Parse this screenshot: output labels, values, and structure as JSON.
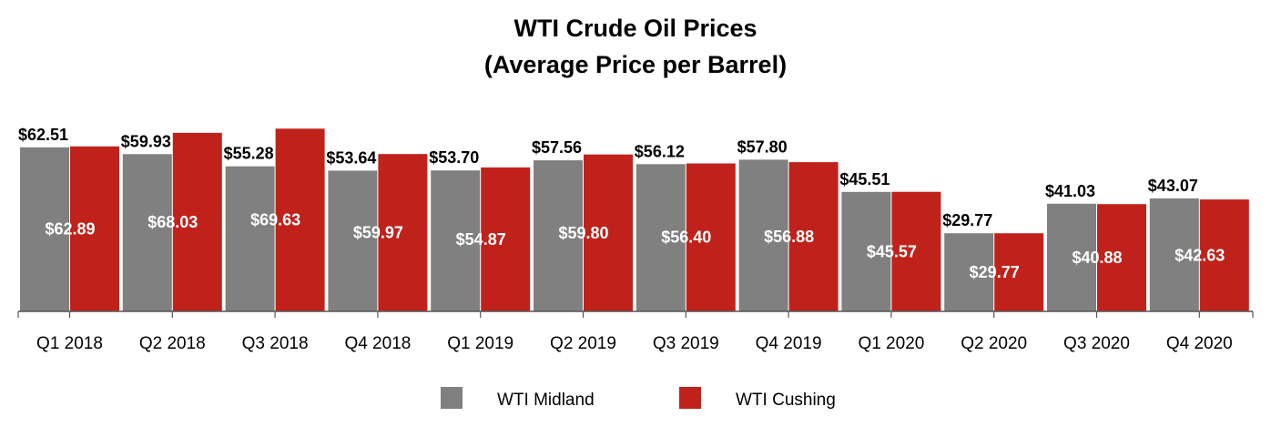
{
  "chart_data": {
    "type": "bar",
    "title": "WTI Crude Oil Prices",
    "subtitle": "(Average Price per Barrel)",
    "categories": [
      "Q1 2018",
      "Q2 2018",
      "Q3 2018",
      "Q4 2018",
      "Q1 2019",
      "Q2 2019",
      "Q3 2019",
      "Q4 2019",
      "Q1 2020",
      "Q2 2020",
      "Q3 2020",
      "Q4 2020"
    ],
    "series": [
      {
        "name": "WTI Midland",
        "color": "#808080",
        "values": [
          62.51,
          59.93,
          55.28,
          53.64,
          53.7,
          57.56,
          56.12,
          57.8,
          45.51,
          29.77,
          41.03,
          43.07
        ],
        "labels": [
          "$62.51",
          "$59.93",
          "$55.28",
          "$53.64",
          "$53.70",
          "$57.56",
          "$56.12",
          "$57.80",
          "$45.51",
          "$29.77",
          "$41.03",
          "$43.07"
        ]
      },
      {
        "name": "WTI Cushing",
        "color": "#C0221B",
        "values": [
          62.89,
          68.03,
          69.63,
          59.97,
          54.87,
          59.8,
          56.4,
          56.88,
          45.57,
          29.77,
          40.88,
          42.63
        ],
        "labels": [
          "$62.89",
          "$68.03",
          "$69.63",
          "$59.97",
          "$54.87",
          "$59.80",
          "$56.40",
          "$56.88",
          "$45.57",
          "$29.77",
          "$40.88",
          "$42.63"
        ]
      }
    ],
    "ylim": [
      0,
      70
    ],
    "grid": false,
    "legend_position": "bottom"
  }
}
